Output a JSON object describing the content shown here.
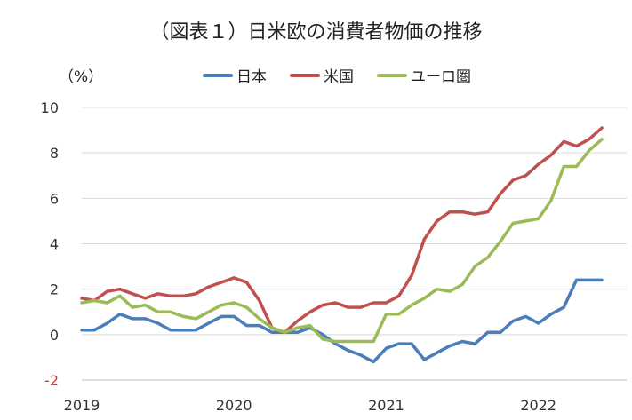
{
  "chart_data": {
    "type": "line",
    "title": "（図表１）日米欧の消費者物価の推移",
    "unit_label": "（%）",
    "ylim": [
      -2,
      10
    ],
    "yticks": [
      "-2",
      "0",
      "2",
      "4",
      "6",
      "8",
      "10"
    ],
    "negative_tick_color": "#e8262b",
    "xlim": [
      2019.0,
      2022.58
    ],
    "xticks": [
      {
        "value": 2019.0,
        "label": "2019"
      },
      {
        "value": 2020.0,
        "label": "2020"
      },
      {
        "value": 2021.0,
        "label": "2021"
      },
      {
        "value": 2022.0,
        "label": "2022"
      }
    ],
    "legend_position": "top",
    "x": [
      2019.0,
      2019.083,
      2019.167,
      2019.25,
      2019.333,
      2019.417,
      2019.5,
      2019.583,
      2019.667,
      2019.75,
      2019.833,
      2019.917,
      2020.0,
      2020.083,
      2020.167,
      2020.25,
      2020.333,
      2020.417,
      2020.5,
      2020.583,
      2020.667,
      2020.75,
      2020.833,
      2020.917,
      2021.0,
      2021.083,
      2021.167,
      2021.25,
      2021.333,
      2021.417,
      2021.5,
      2021.583,
      2021.667,
      2021.75,
      2021.833,
      2021.917,
      2022.0,
      2022.083,
      2022.167,
      2022.25,
      2022.333,
      2022.417
    ],
    "series": [
      {
        "name": "日本",
        "color": "#4a7ebb",
        "values": [
          0.2,
          0.2,
          0.5,
          0.9,
          0.7,
          0.7,
          0.5,
          0.2,
          0.2,
          0.2,
          0.5,
          0.8,
          0.8,
          0.4,
          0.4,
          0.1,
          0.1,
          0.1,
          0.3,
          0.0,
          -0.4,
          -0.7,
          -0.9,
          -1.2,
          -0.6,
          -0.4,
          -0.4,
          -1.1,
          -0.8,
          -0.5,
          -0.3,
          -0.4,
          0.1,
          0.1,
          0.6,
          0.8,
          0.5,
          0.9,
          1.2,
          2.4,
          2.4,
          2.4
        ]
      },
      {
        "name": "米国",
        "color": "#c0504d",
        "values": [
          1.6,
          1.5,
          1.9,
          2.0,
          1.8,
          1.6,
          1.8,
          1.7,
          1.7,
          1.8,
          2.1,
          2.3,
          2.5,
          2.3,
          1.5,
          0.3,
          0.1,
          0.6,
          1.0,
          1.3,
          1.4,
          1.2,
          1.2,
          1.4,
          1.4,
          1.7,
          2.6,
          4.2,
          5.0,
          5.4,
          5.4,
          5.3,
          5.4,
          6.2,
          6.8,
          7.0,
          7.5,
          7.9,
          8.5,
          8.3,
          8.6,
          9.1
        ]
      },
      {
        "name": "ユーロ圏",
        "color": "#9bbb59",
        "values": [
          1.4,
          1.5,
          1.4,
          1.7,
          1.2,
          1.3,
          1.0,
          1.0,
          0.8,
          0.7,
          1.0,
          1.3,
          1.4,
          1.2,
          0.7,
          0.3,
          0.1,
          0.3,
          0.4,
          -0.2,
          -0.3,
          -0.3,
          -0.3,
          -0.3,
          0.9,
          0.9,
          1.3,
          1.6,
          2.0,
          1.9,
          2.2,
          3.0,
          3.4,
          4.1,
          4.9,
          5.0,
          5.1,
          5.9,
          7.4,
          7.4,
          8.1,
          8.6
        ]
      }
    ]
  }
}
